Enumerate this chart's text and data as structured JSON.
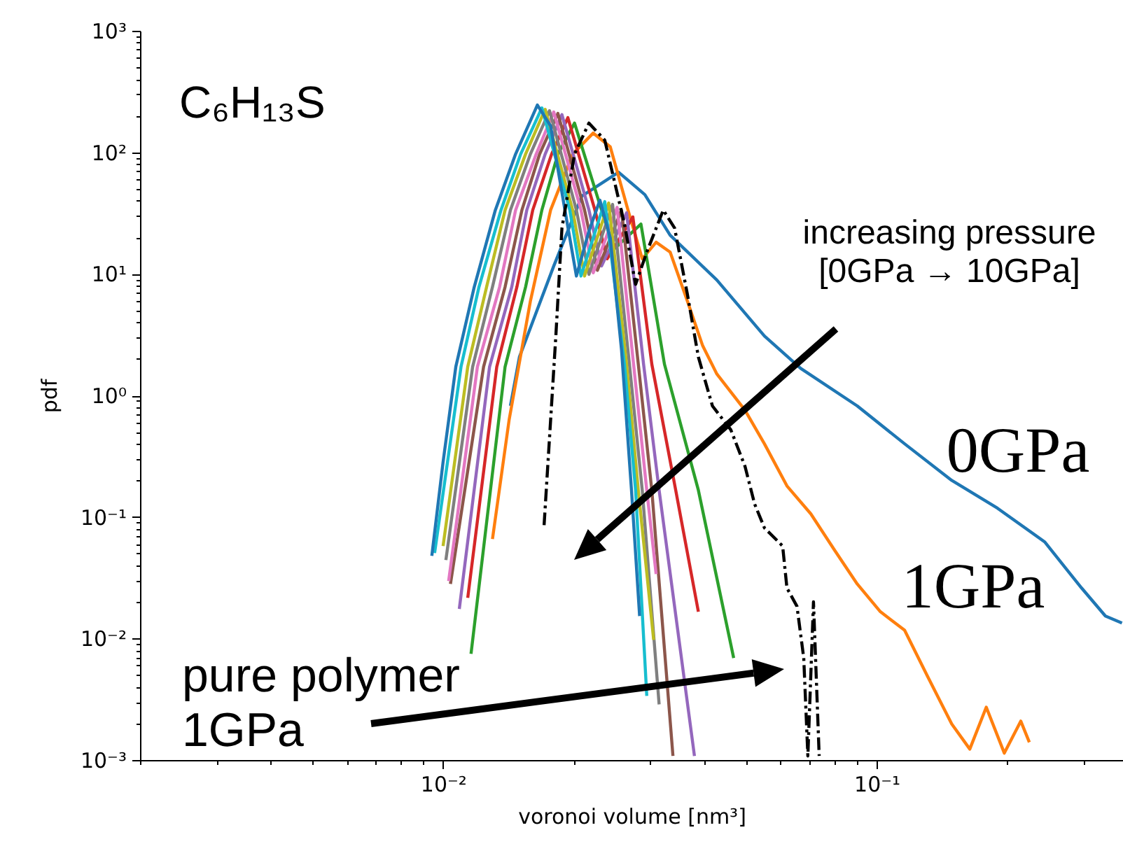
{
  "chart_data": {
    "type": "line",
    "xlabel": "voronoi volume [nm³]",
    "ylabel": "pdf",
    "log": "xy",
    "xlim": [
      0.002,
      0.37
    ],
    "ylim": [
      0.001,
      1000
    ],
    "xticks": [
      {
        "value": 0.002,
        "label": null
      },
      {
        "value": 0.003,
        "label": null
      },
      {
        "value": 0.004,
        "label": null
      },
      {
        "value": 0.005,
        "label": null
      },
      {
        "value": 0.006,
        "label": null
      },
      {
        "value": 0.007,
        "label": null
      },
      {
        "value": 0.008,
        "label": null
      },
      {
        "value": 0.009,
        "label": null
      },
      {
        "value": 0.01,
        "label": "10⁻²"
      },
      {
        "value": 0.02,
        "label": null
      },
      {
        "value": 0.03,
        "label": null
      },
      {
        "value": 0.04,
        "label": null
      },
      {
        "value": 0.05,
        "label": null
      },
      {
        "value": 0.06,
        "label": null
      },
      {
        "value": 0.07,
        "label": null
      },
      {
        "value": 0.08,
        "label": null
      },
      {
        "value": 0.09,
        "label": null
      },
      {
        "value": 0.1,
        "label": "10⁻¹"
      },
      {
        "value": 0.2,
        "label": null
      },
      {
        "value": 0.3,
        "label": null
      }
    ],
    "yticks": [
      {
        "value": 0.001,
        "label": "10⁻³"
      },
      {
        "value": 0.002,
        "label": null
      },
      {
        "value": 0.003,
        "label": null
      },
      {
        "value": 0.004,
        "label": null
      },
      {
        "value": 0.005,
        "label": null
      },
      {
        "value": 0.006,
        "label": null
      },
      {
        "value": 0.007,
        "label": null
      },
      {
        "value": 0.008,
        "label": null
      },
      {
        "value": 0.009,
        "label": null
      },
      {
        "value": 0.01,
        "label": "10⁻²"
      },
      {
        "value": 0.02,
        "label": null
      },
      {
        "value": 0.03,
        "label": null
      },
      {
        "value": 0.04,
        "label": null
      },
      {
        "value": 0.05,
        "label": null
      },
      {
        "value": 0.06,
        "label": null
      },
      {
        "value": 0.07,
        "label": null
      },
      {
        "value": 0.08,
        "label": null
      },
      {
        "value": 0.09,
        "label": null
      },
      {
        "value": 0.1,
        "label": "10⁻¹"
      },
      {
        "value": 0.2,
        "label": null
      },
      {
        "value": 0.3,
        "label": null
      },
      {
        "value": 0.4,
        "label": null
      },
      {
        "value": 0.5,
        "label": null
      },
      {
        "value": 0.6,
        "label": null
      },
      {
        "value": 0.7,
        "label": null
      },
      {
        "value": 0.8,
        "label": null
      },
      {
        "value": 0.9,
        "label": null
      },
      {
        "value": 1,
        "label": "10⁰"
      },
      {
        "value": 2,
        "label": null
      },
      {
        "value": 3,
        "label": null
      },
      {
        "value": 4,
        "label": null
      },
      {
        "value": 5,
        "label": null
      },
      {
        "value": 6,
        "label": null
      },
      {
        "value": 7,
        "label": null
      },
      {
        "value": 8,
        "label": null
      },
      {
        "value": 9,
        "label": null
      },
      {
        "value": 10,
        "label": "10¹"
      },
      {
        "value": 20,
        "label": null
      },
      {
        "value": 30,
        "label": null
      },
      {
        "value": 40,
        "label": null
      },
      {
        "value": 50,
        "label": null
      },
      {
        "value": 60,
        "label": null
      },
      {
        "value": 70,
        "label": null
      },
      {
        "value": 80,
        "label": null
      },
      {
        "value": 90,
        "label": null
      },
      {
        "value": 100,
        "label": "10²"
      },
      {
        "value": 200,
        "label": null
      },
      {
        "value": 300,
        "label": null
      },
      {
        "value": 400,
        "label": null
      },
      {
        "value": 500,
        "label": null
      },
      {
        "value": 600,
        "label": null
      },
      {
        "value": 700,
        "label": null
      },
      {
        "value": 800,
        "label": null
      },
      {
        "value": 900,
        "label": null
      },
      {
        "value": 1000,
        "label": "10³"
      }
    ],
    "annotations": [
      "C₆H₁₃S",
      "increasing pressure\n[0GPa → 10GPa]",
      "pure polymer\n1GPa",
      "0GPa",
      "1GPa"
    ],
    "series": [
      {
        "color": "#1f77b4",
        "x": [
          0.0143,
          0.015,
          0.018,
          0.0209,
          0.0254,
          0.0292,
          0.0334,
          0.0428,
          0.0551,
          0.0668,
          0.0902,
          0.116,
          0.149,
          0.19,
          0.244,
          0.297,
          0.337,
          0.368
        ],
        "values": [
          0.82,
          2.07,
          11.6,
          43.7,
          68.6,
          44.9,
          20.8,
          8.9,
          3.08,
          1.67,
          0.82,
          0.4,
          0.2,
          0.118,
          0.0624,
          0.026,
          0.0153,
          0.0134
        ]
      },
      {
        "color": "#ff7f0e",
        "x": [
          0.013,
          0.0142,
          0.0159,
          0.0177,
          0.0199,
          0.0222,
          0.0243,
          0.0267,
          0.0288,
          0.031,
          0.0334,
          0.0366,
          0.0397,
          0.0428,
          0.0497,
          0.0551,
          0.0621,
          0.0705,
          0.08,
          0.0902,
          0.102,
          0.116,
          0.131,
          0.149,
          0.164,
          0.179,
          0.197,
          0.215,
          0.225
        ],
        "values": [
          0.0658,
          0.627,
          5.97,
          33.5,
          96.8,
          144,
          111,
          33.5,
          13.3,
          18.2,
          15.1,
          5.97,
          2.56,
          1.5,
          0.755,
          0.4,
          0.18,
          0.106,
          0.0532,
          0.0281,
          0.0166,
          0.0117,
          0.00489,
          0.00198,
          0.00123,
          0.00272,
          0.00114,
          0.00209,
          0.0014
        ]
      },
      {
        "color": "#2ca02c",
        "x": [
          0.0116,
          0.0139,
          0.0155,
          0.0169,
          0.0184,
          0.0201,
          0.0232,
          0.0248,
          0.0286,
          0.0324,
          0.0388,
          0.0468
        ],
        "values": [
          0.00747,
          1.72,
          7.8,
          33.5,
          96.8,
          174,
          33.5,
          16.0,
          25.7,
          1.81,
          0.166,
          0.0069
        ]
      },
      {
        "color": "#d62728",
        "x": [
          0.0114,
          0.0133,
          0.0148,
          0.0161,
          0.0178,
          0.0194,
          0.0224,
          0.0239,
          0.0274,
          0.0303,
          0.0344,
          0.0388
        ],
        "values": [
          0.0216,
          1.72,
          7.8,
          33.5,
          96.8,
          193,
          33.5,
          13.3,
          29.4,
          1.81,
          0.166,
          0.0166
        ]
      },
      {
        "color": "#9467bd",
        "x": [
          0.0109,
          0.0128,
          0.0144,
          0.0156,
          0.0172,
          0.0188,
          0.0217,
          0.0232,
          0.0265,
          0.029,
          0.0315,
          0.038
        ],
        "values": [
          0.0175,
          1.72,
          7.8,
          33.5,
          96.8,
          204,
          33.5,
          11.6,
          31.8,
          1.81,
          0.166,
          0.00108
        ]
      },
      {
        "color": "#8c564b",
        "x": [
          0.0104,
          0.0124,
          0.0139,
          0.0152,
          0.0167,
          0.0184,
          0.0212,
          0.0227,
          0.0258,
          0.0282,
          0.0303,
          0.0339
        ],
        "values": [
          0.0281,
          1.72,
          7.8,
          33.5,
          96.8,
          209,
          33.5,
          10.7,
          33.5,
          1.81,
          0.166,
          0.00108
        ]
      },
      {
        "color": "#e377c2",
        "x": [
          0.0103,
          0.012,
          0.0135,
          0.0147,
          0.0164,
          0.018,
          0.0208,
          0.0222,
          0.0252,
          0.0275,
          0.0295,
          0.031
        ],
        "values": [
          0.0297,
          1.72,
          7.8,
          33.5,
          96.8,
          215,
          33.5,
          10.2,
          35.3,
          1.81,
          0.166,
          0.0339
        ]
      },
      {
        "color": "#7f7f7f",
        "x": [
          0.01015,
          0.0117,
          0.013,
          0.0143,
          0.0159,
          0.0176,
          0.0203,
          0.0217,
          0.0246,
          0.0269,
          0.0288,
          0.0315
        ],
        "values": [
          0.0442,
          1.72,
          7.8,
          33.5,
          96.8,
          220,
          33.5,
          9.9,
          37.3,
          1.81,
          0.166,
          0.00287
        ]
      },
      {
        "color": "#bcbd22",
        "x": [
          0.01,
          0.0114,
          0.0126,
          0.0139,
          0.0155,
          0.0172,
          0.0199,
          0.0212,
          0.0241,
          0.0265,
          0.0282,
          0.0306
        ],
        "values": [
          0.0576,
          1.72,
          7.8,
          33.5,
          96.8,
          226,
          33.5,
          9.6,
          38.3,
          1.81,
          0.166,
          0.00973
        ]
      },
      {
        "color": "#17becf",
        "x": [
          0.00956,
          0.011,
          0.0121,
          0.0136,
          0.0151,
          0.0169,
          0.0196,
          0.0208,
          0.0236,
          0.0262,
          0.0278,
          0.0295
        ],
        "values": [
          0.0505,
          1.72,
          7.8,
          33.5,
          96.8,
          232,
          33.5,
          9.6,
          39.3,
          1.81,
          0.166,
          0.00337
        ]
      },
      {
        "color": "#1f77b4",
        "x": [
          0.00942,
          0.01,
          0.0107,
          0.0118,
          0.0132,
          0.0147,
          0.0165,
          0.0177,
          0.0191,
          0.0203,
          0.0217,
          0.023,
          0.0243,
          0.0258,
          0.0272,
          0.0284
        ],
        "values": [
          0.0479,
          0.283,
          1.72,
          7.8,
          33.5,
          96.8,
          245,
          165,
          33.5,
          9.6,
          22.5,
          40.4,
          19.7,
          2.36,
          0.166,
          0.0153
        ]
      },
      {
        "color": "#000000",
        "line_style": "dashed",
        "x": [
          0.0171,
          0.0182,
          0.0188,
          0.0201,
          0.0217,
          0.0236,
          0.0262,
          0.0278,
          0.0295,
          0.0322,
          0.0342,
          0.0366,
          0.0388,
          0.0418,
          0.0461,
          0.0497,
          0.0523,
          0.0551,
          0.0607,
          0.0621,
          0.0655,
          0.0679,
          0.0694,
          0.0715,
          0.0737
        ],
        "values": [
          0.0857,
          3.08,
          23.8,
          96.8,
          174,
          126,
          25.7,
          8.2,
          15.1,
          33.5,
          23.8,
          6.8,
          2.07,
          0.82,
          0.521,
          0.261,
          0.128,
          0.0813,
          0.0576,
          0.026,
          0.0184,
          0.0069,
          0.00108,
          0.02,
          0.00108
        ]
      }
    ]
  }
}
